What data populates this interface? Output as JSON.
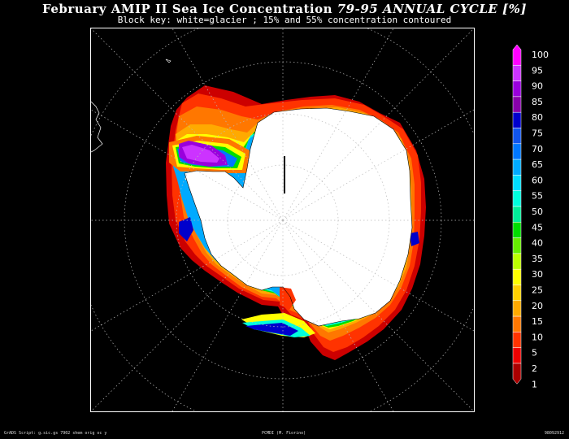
{
  "title": {
    "main": "February AMIP II Sea Ice Concentration",
    "years": "79-95 ANNUAL CYCLE [%]"
  },
  "subtitle": "Block key: white=glacier ; 15% and 55% concentration contoured",
  "legend": {
    "levels": [
      "100",
      "95",
      "90",
      "85",
      "80",
      "75",
      "70",
      "65",
      "60",
      "55",
      "50",
      "45",
      "40",
      "35",
      "30",
      "25",
      "20",
      "15",
      "10",
      "5",
      "2",
      "1"
    ],
    "colors": [
      "#ff00ff",
      "#cc33ff",
      "#9900dd",
      "#8800aa",
      "#0000cc",
      "#1155ee",
      "#0077ff",
      "#00aaff",
      "#00ddff",
      "#00ffdd",
      "#00ee99",
      "#00dd00",
      "#66ee00",
      "#bbff00",
      "#ffff00",
      "#ffd000",
      "#ffaa00",
      "#ff7700",
      "#ff3300",
      "#ee0000",
      "#aa0000"
    ]
  },
  "footer": {
    "left": "GrADS Script: g.sic.gs 7902 shem orig oc y",
    "center": "PCMDI (M. Fiorino)",
    "right": "98092912"
  }
}
